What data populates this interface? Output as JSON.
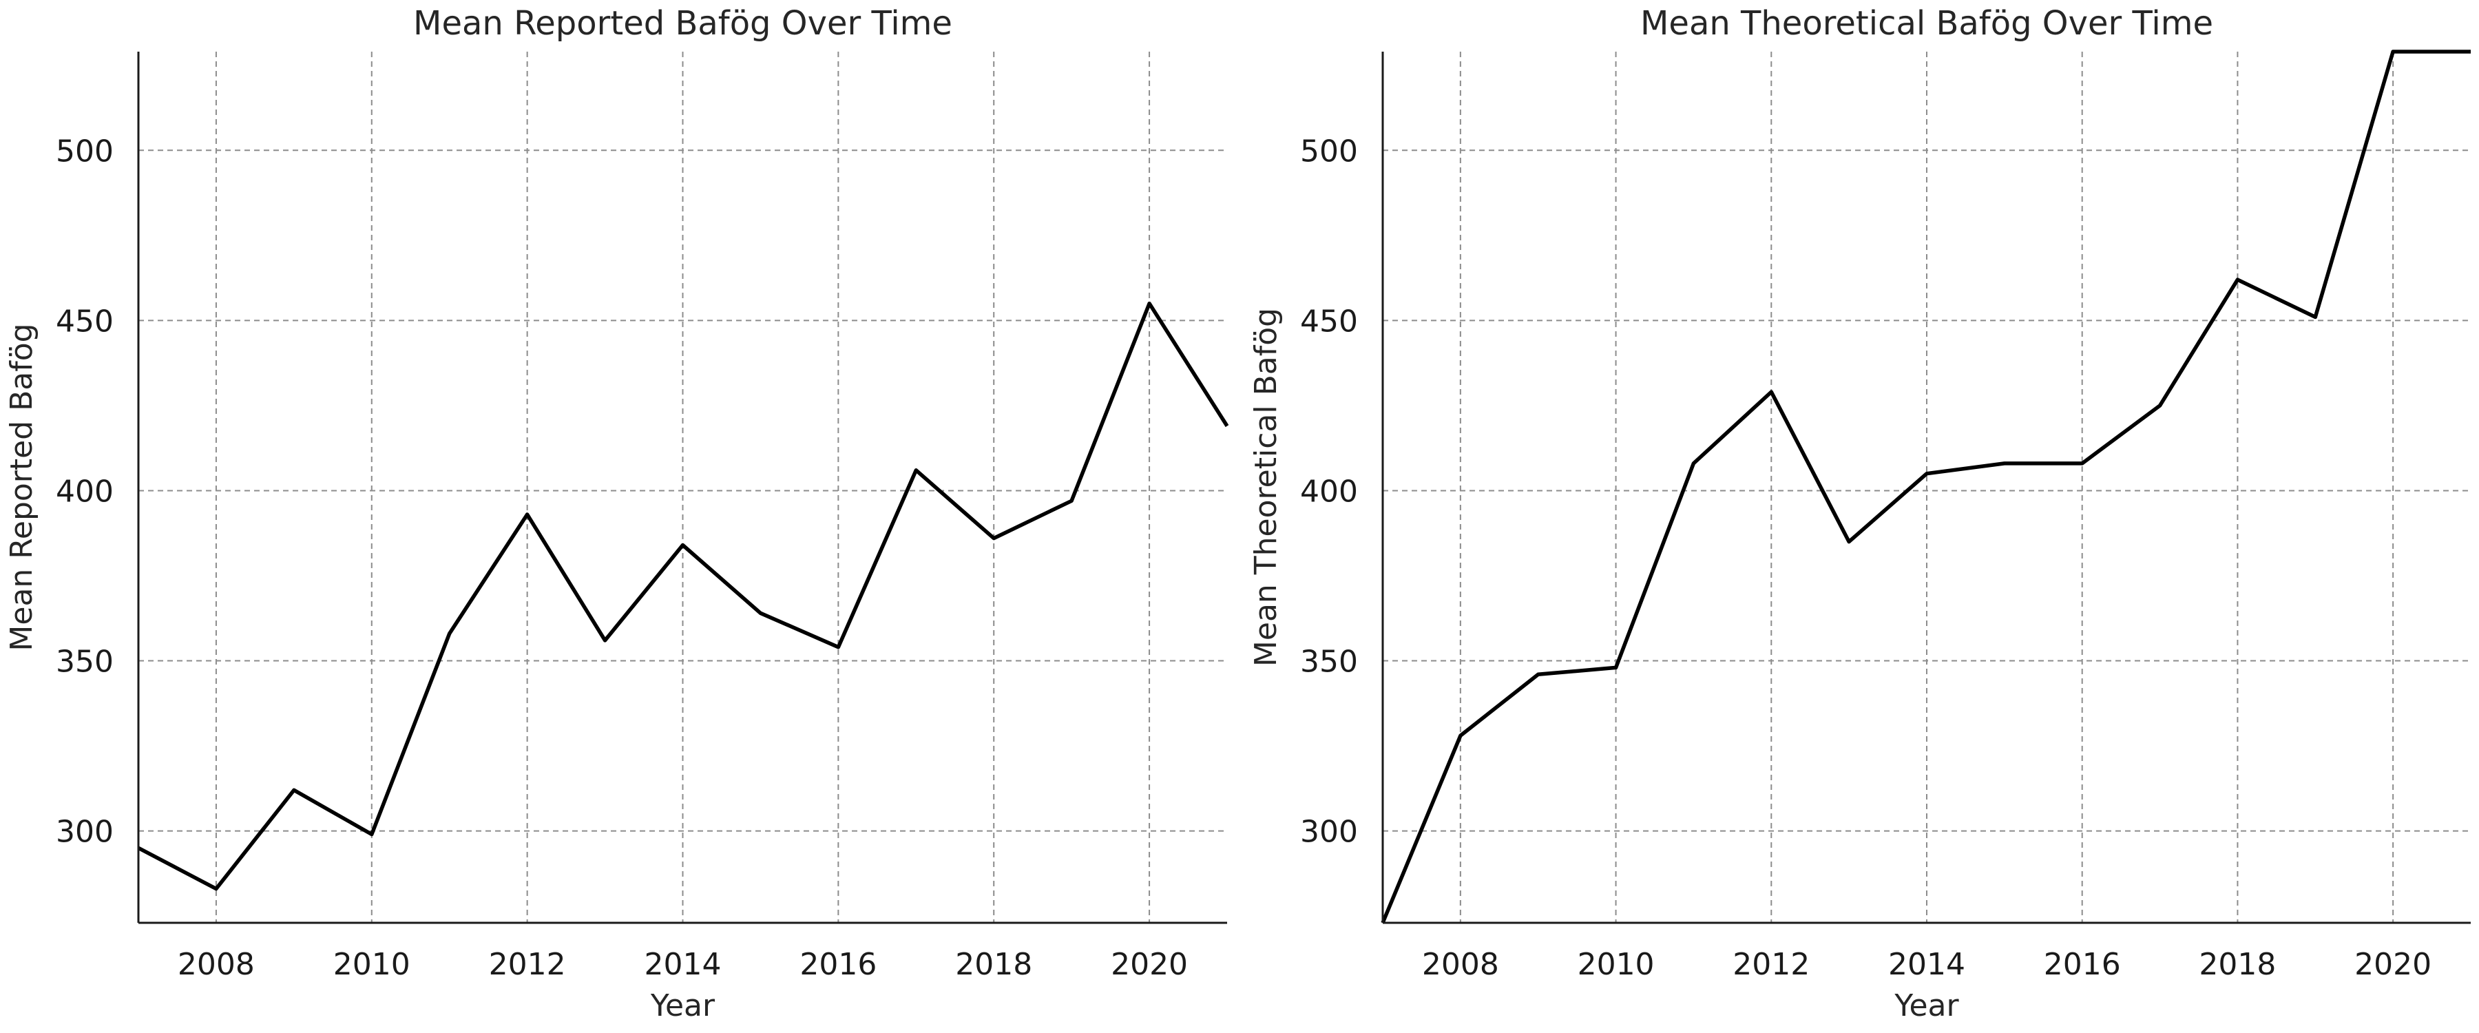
{
  "chart_data": [
    {
      "type": "line",
      "title": "Mean Reported Bafög Over Time",
      "xlabel": "Year",
      "ylabel": "Mean Reported Bafög",
      "xlim": [
        2007,
        2021
      ],
      "ylim": [
        273,
        529
      ],
      "xticks": [
        2008,
        2010,
        2012,
        2014,
        2016,
        2018,
        2020
      ],
      "yticks": [
        300,
        350,
        400,
        450,
        500
      ],
      "grid": true,
      "x": [
        2007,
        2008,
        2009,
        2010,
        2011,
        2012,
        2013,
        2014,
        2015,
        2016,
        2017,
        2018,
        2019,
        2020,
        2021
      ],
      "series": [
        {
          "color": "#000000",
          "values": [
            295,
            283,
            312,
            299,
            358,
            393,
            356,
            384,
            364,
            354,
            406,
            386,
            397,
            455,
            419
          ]
        }
      ]
    },
    {
      "type": "line",
      "title": "Mean Theoretical Bafög Over Time",
      "xlabel": "Year",
      "ylabel": "Mean Theoretical Bafög",
      "xlim": [
        2007,
        2021
      ],
      "ylim": [
        273,
        529
      ],
      "xticks": [
        2008,
        2010,
        2012,
        2014,
        2016,
        2018,
        2020
      ],
      "yticks": [
        300,
        350,
        400,
        450,
        500
      ],
      "grid": true,
      "x": [
        2007,
        2008,
        2009,
        2010,
        2011,
        2012,
        2013,
        2014,
        2015,
        2016,
        2017,
        2018,
        2019,
        2020,
        2021
      ],
      "series": [
        {
          "color": "#000000",
          "values": [
            273,
            328,
            346,
            348,
            408,
            429,
            385,
            405,
            408,
            408,
            425,
            462,
            451,
            529,
            529
          ]
        }
      ]
    }
  ]
}
